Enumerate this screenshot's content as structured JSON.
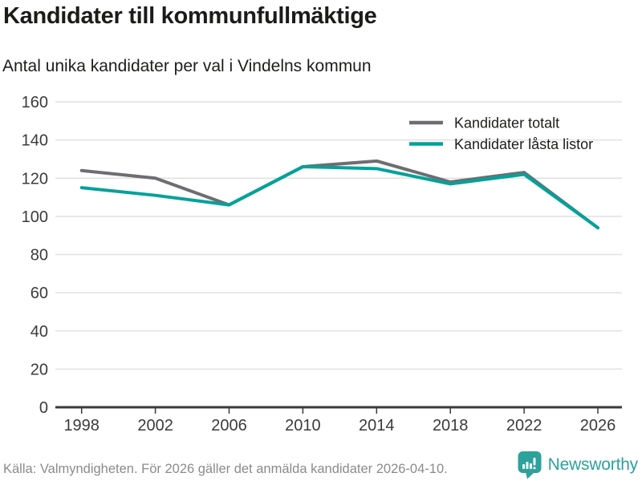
{
  "header": {
    "title": "Kandidater till kommunfullmäktige",
    "subtitle": "Antal unika kandidater per val i Vindelns kommun"
  },
  "chart_data": {
    "type": "line",
    "title": "Kandidater till kommunfullmäktige",
    "subtitle": "Antal unika kandidater per val i Vindelns kommun",
    "x": [
      1998,
      2002,
      2006,
      2010,
      2014,
      2018,
      2022,
      2026
    ],
    "series": [
      {
        "name": "Kandidater totalt",
        "color": "#6e6e72",
        "values": [
          124,
          120,
          106,
          126,
          129,
          118,
          123,
          94
        ]
      },
      {
        "name": "Kandidater låsta listor",
        "color": "#00a29a",
        "values": [
          115,
          111,
          106,
          126,
          125,
          117,
          122,
          94
        ]
      }
    ],
    "xlabel": "",
    "ylabel": "",
    "ylim": [
      0,
      160
    ],
    "ytick_step": 20,
    "grid": "horizontal",
    "legend_position": "top-right"
  },
  "colors": {
    "series_total": "#6e6e72",
    "series_lasta": "#00a29a",
    "gridline": "#e1e1e1",
    "axis": "#3a3a3a",
    "text": "#1d1d1b",
    "muted_text": "#8b8b8b",
    "brand_teal": "#2da19c"
  },
  "footer": {
    "source": "Källa: Valmyndigheten. För 2026 gäller det anmälda kandidater 2026-04-10.",
    "brand": "Newsworthy"
  }
}
